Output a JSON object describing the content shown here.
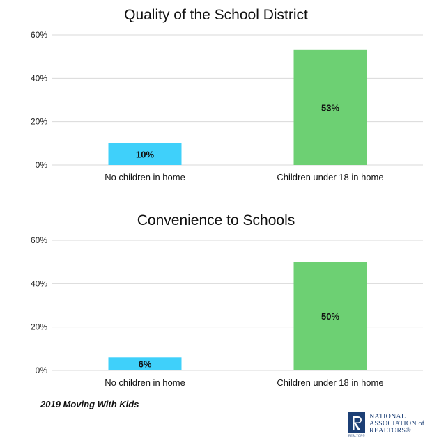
{
  "chart_data": [
    {
      "type": "bar",
      "title": "Quality of the School District",
      "categories": [
        "No children in home",
        "Children under 18 in home"
      ],
      "values": [
        10,
        53
      ],
      "data_labels": [
        "10%",
        "53%"
      ],
      "colors": [
        "#3fd0fa",
        "#6dd073"
      ],
      "yticks": [
        "0%",
        "20%",
        "40%",
        "60%"
      ],
      "ylim": [
        0,
        60
      ],
      "grid": true
    },
    {
      "type": "bar",
      "title": "Convenience to Schools",
      "categories": [
        "No children in home",
        "Children under 18 in home"
      ],
      "values": [
        6,
        50
      ],
      "data_labels": [
        "6%",
        "50%"
      ],
      "colors": [
        "#3fd0fa",
        "#6dd073"
      ],
      "yticks": [
        "0%",
        "20%",
        "40%",
        "60%"
      ],
      "ylim": [
        0,
        60
      ],
      "grid": true
    }
  ],
  "footer": {
    "source": "2019 Moving With Kids",
    "logo_line1": "NATIONAL",
    "logo_line2": "ASSOCIATION of",
    "logo_line3": "REALTORS®",
    "logo_sub": "REALTOR®"
  }
}
